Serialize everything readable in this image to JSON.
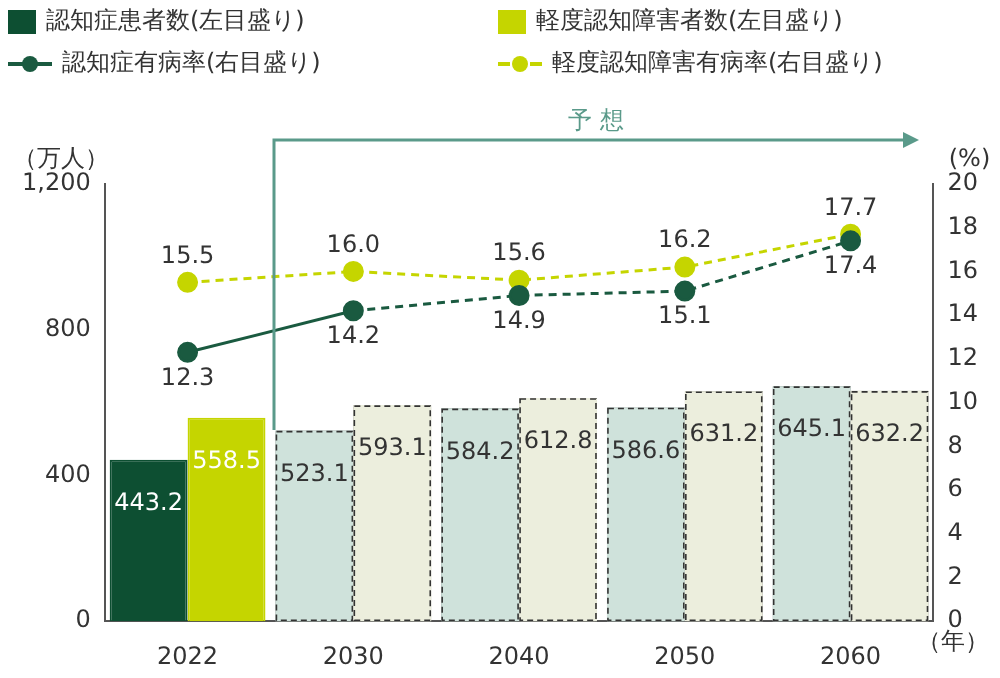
{
  "chart_data": {
    "type": "bar",
    "ylabel": "（万人）",
    "y2label": "(%)",
    "xlabel": "（年）",
    "categories": [
      "2022",
      "2030",
      "2040",
      "2050",
      "2060"
    ],
    "series": [
      {
        "name": "認知症患者数(左目盛り)",
        "type": "bar",
        "color": "#0d4f32",
        "colors": [
          "#0d4f32",
          "#cfe2db",
          "#cfe2db",
          "#cfe2db",
          "#cfe2db"
        ],
        "values": [
          443.2,
          523.1,
          584.2,
          586.6,
          645.1
        ],
        "value_labels": [
          "443.2",
          "523.1",
          "584.2",
          "586.6",
          "645.1"
        ]
      },
      {
        "name": "軽度認知障害者数(左目盛り)",
        "type": "bar",
        "color": "#c5d500",
        "colors": [
          "#c5d500",
          "#eceedd",
          "#eceedd",
          "#eceedd",
          "#eceedd"
        ],
        "values": [
          558.5,
          593.1,
          612.8,
          631.2,
          632.2
        ],
        "value_labels": [
          "558.5",
          "593.1",
          "612.8",
          "631.2",
          "632.2"
        ]
      },
      {
        "name": "認知症有病率(右目盛り)",
        "type": "line",
        "axis": "y2",
        "color": "#1a5a40",
        "line_style": "solid",
        "marker": "circle",
        "values": [
          12.3,
          14.2,
          14.9,
          15.1,
          17.4
        ],
        "value_labels": [
          "12.3",
          "14.2",
          "14.9",
          "15.1",
          "17.4"
        ]
      },
      {
        "name": "軽度認知障害有病率(右目盛り)",
        "type": "line",
        "axis": "y2",
        "color": "#c5d500",
        "line_style": "dashed",
        "marker": "circle",
        "values": [
          15.5,
          16.0,
          15.6,
          16.2,
          17.7
        ],
        "value_labels": [
          "15.5",
          "16.0",
          "15.6",
          "16.2",
          "17.7"
        ]
      }
    ],
    "ylim": [
      0,
      1200
    ],
    "yticks": [
      0,
      400,
      800,
      {
        "value": 1200,
        "label": "1,200"
      }
    ],
    "y2lim": [
      0,
      20
    ],
    "y2ticks": [
      0,
      2,
      4,
      6,
      8,
      10,
      12,
      14,
      16,
      18,
      20
    ],
    "annotations": [
      "予 想"
    ],
    "legend": "top left",
    "grid": false
  }
}
